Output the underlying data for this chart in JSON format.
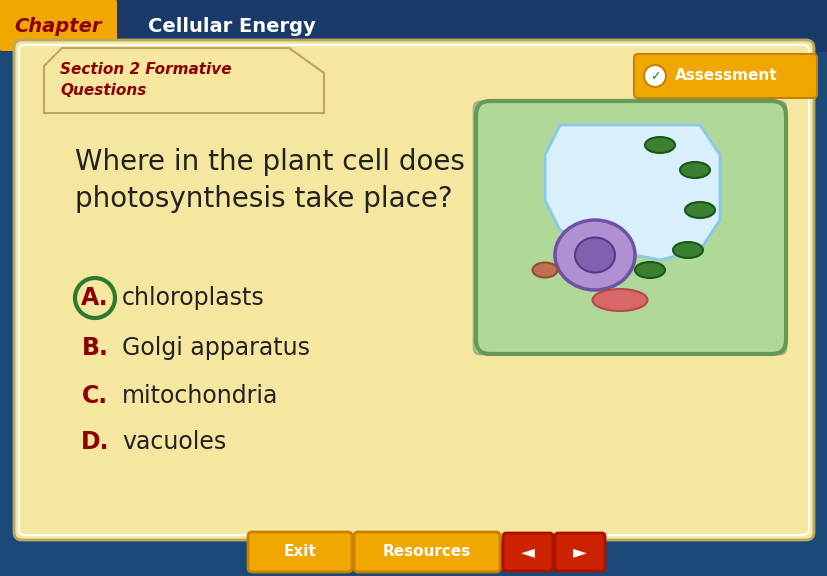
{
  "bg_color": "#1a4a7a",
  "chapter_tab_color": "#f0a800",
  "chapter_tab_text": "Chapter",
  "chapter_tab_text_color": "#8b0000",
  "header_bg_color": "#1a3a6a",
  "header_text": "Cellular Energy",
  "header_text_color": "#ffffff",
  "section_tab_color": "#f5e6a0",
  "section_tab_text": "Section 2 Formative\nQuestions",
  "section_tab_text_color": "#8b0000",
  "main_bg_color": "#f5e6a0",
  "question_text": "Where in the plant cell does\nphotosynthesis take place?",
  "question_text_color": "#222222",
  "answers": [
    {
      "letter": "A.",
      "text": "chloroplasts",
      "circled": true
    },
    {
      "letter": "B.",
      "text": "Golgi apparatus",
      "circled": false
    },
    {
      "letter": "C.",
      "text": "mitochondria",
      "circled": false
    },
    {
      "letter": "D.",
      "text": "vacuoles",
      "circled": false
    }
  ],
  "answer_letter_color": "#8b0000",
  "answer_text_color": "#222222",
  "circle_color": "#2d7a2d",
  "assessment_bg_color": "#f0a800",
  "assessment_text": "Assessment",
  "assessment_text_color": "#ffffff",
  "exit_bg_color": "#f0a800",
  "exit_text": "Exit",
  "resources_bg_color": "#f0a800",
  "resources_text": "Resources",
  "footer_arrow_color": "#cc2200",
  "inner_frame_color": "#ffffff",
  "nucleolus_edge_color": "#583888"
}
